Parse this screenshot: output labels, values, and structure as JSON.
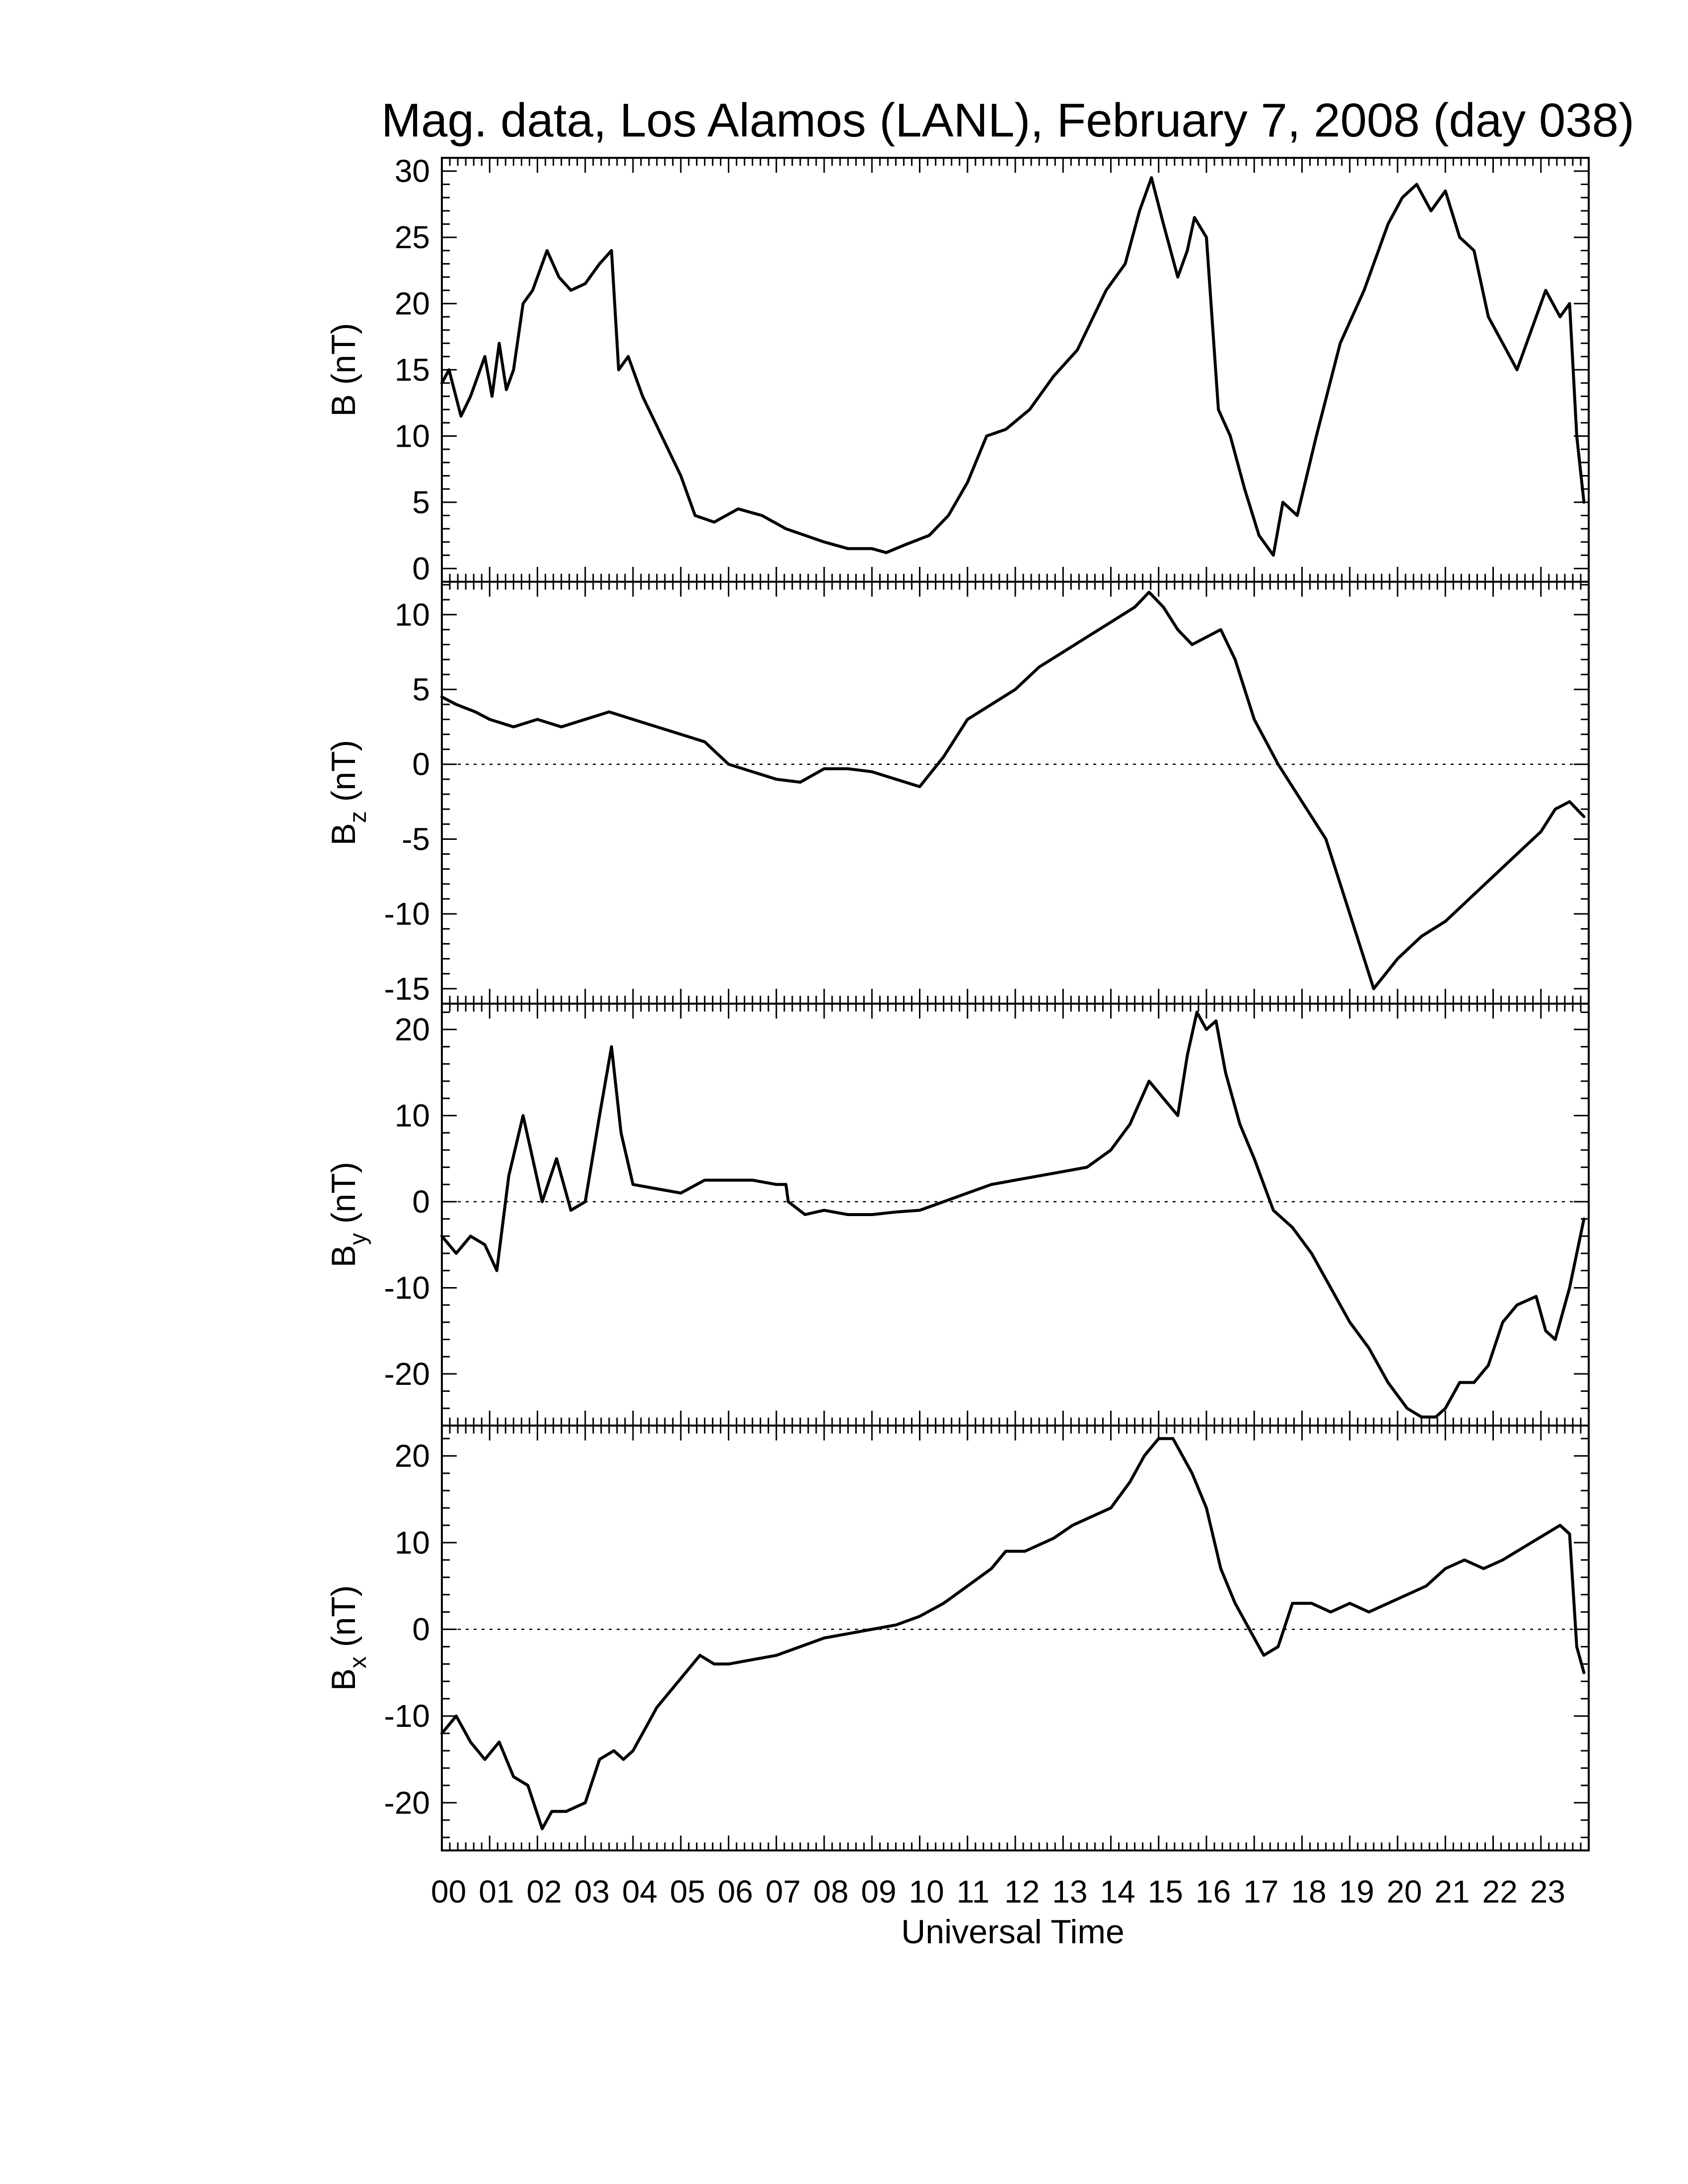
{
  "chart_data": {
    "title": "Mag. data, Los Alamos (LANL), February 7, 2008 (day 038)",
    "type": "line",
    "xlabel": "Universal Time",
    "x_ticks": [
      "00",
      "01",
      "02",
      "03",
      "04",
      "05",
      "06",
      "07",
      "08",
      "09",
      "10",
      "11",
      "12",
      "13",
      "14",
      "15",
      "16",
      "17",
      "18",
      "19",
      "20",
      "21",
      "22",
      "23"
    ],
    "xlim": [
      0,
      24
    ],
    "line_color": "#000000",
    "grid": false,
    "panels": [
      {
        "id": "B",
        "ylabel": "B",
        "ylabel_sub": "",
        "unit": "(nT)",
        "ylim": [
          -1,
          31
        ],
        "yticks": [
          0,
          5,
          10,
          15,
          20,
          25,
          30
        ],
        "zero_line": false,
        "x": [
          0,
          0.15,
          0.4,
          0.6,
          0.9,
          1.05,
          1.2,
          1.35,
          1.5,
          1.7,
          1.9,
          2.2,
          2.45,
          2.7,
          3.0,
          3.3,
          3.55,
          3.7,
          3.9,
          4.2,
          4.6,
          5.0,
          5.3,
          5.7,
          6.2,
          6.7,
          7.2,
          7.6,
          8.0,
          8.5,
          9.0,
          9.3,
          9.7,
          10.2,
          10.6,
          11.0,
          11.4,
          11.8,
          12.3,
          12.8,
          13.3,
          13.9,
          14.3,
          14.6,
          14.85,
          15.1,
          15.4,
          15.6,
          15.75,
          16.0,
          16.25,
          16.5,
          16.8,
          17.1,
          17.4,
          17.6,
          17.9,
          18.3,
          18.8,
          19.3,
          19.8,
          20.1,
          20.4,
          20.7,
          21.0,
          21.3,
          21.6,
          21.9,
          22.2,
          22.5,
          22.8,
          23.1,
          23.4,
          23.6,
          23.75,
          23.9
        ],
        "y": [
          14,
          15,
          11.5,
          13,
          16,
          13,
          17,
          13.5,
          15,
          20,
          21,
          24,
          22,
          21,
          21.5,
          23,
          24,
          15,
          16,
          13,
          10,
          7,
          4,
          3.5,
          4.5,
          4,
          3,
          2.5,
          2,
          1.5,
          1.5,
          1.2,
          1.8,
          2.5,
          4,
          6.5,
          10,
          10.5,
          12,
          14.5,
          16.5,
          21,
          23,
          27,
          29.5,
          26,
          22,
          24,
          26.5,
          25,
          12,
          10,
          6,
          2.5,
          1,
          5,
          4,
          10,
          17,
          21,
          26,
          28,
          29,
          27,
          28.5,
          25,
          24,
          19,
          17,
          15,
          18,
          21,
          19,
          20,
          10,
          5
        ]
      },
      {
        "id": "Bz",
        "ylabel": "B",
        "ylabel_sub": "z",
        "unit": "(nT)",
        "ylim": [
          -16,
          12.2
        ],
        "yticks": [
          -15,
          -10,
          -5,
          0,
          5,
          10
        ],
        "zero_line": true,
        "x": [
          0,
          0.3,
          0.7,
          1.0,
          1.5,
          2.0,
          2.5,
          3.0,
          3.5,
          4.0,
          4.5,
          5.0,
          5.5,
          6.0,
          6.5,
          7.0,
          7.5,
          8.0,
          8.5,
          9.0,
          9.5,
          10.0,
          10.5,
          11.0,
          11.5,
          12.0,
          12.5,
          13.0,
          13.5,
          14.0,
          14.5,
          14.8,
          15.1,
          15.4,
          15.7,
          16.0,
          16.3,
          16.6,
          17.0,
          17.5,
          18.0,
          18.5,
          19.0,
          19.5,
          20.0,
          20.5,
          21.0,
          21.5,
          22.0,
          22.5,
          23.0,
          23.3,
          23.6,
          23.9
        ],
        "y": [
          4.5,
          4,
          3.5,
          3,
          2.5,
          3,
          2.5,
          3,
          3.5,
          3,
          2.5,
          2,
          1.5,
          0,
          -0.5,
          -1,
          -1.2,
          -0.3,
          -0.3,
          -0.5,
          -1,
          -1.5,
          0.5,
          3,
          4,
          5,
          6.5,
          7.5,
          8.5,
          9.5,
          10.5,
          11.5,
          10.5,
          9,
          8,
          8.5,
          9,
          7,
          3,
          0,
          -2.5,
          -5,
          -10,
          -15,
          -13,
          -11.5,
          -10.5,
          -9,
          -7.5,
          -6,
          -4.5,
          -3,
          -2.5,
          -3.5
        ]
      },
      {
        "id": "By",
        "ylabel": "B",
        "ylabel_sub": "y",
        "unit": "(nT)",
        "ylim": [
          -26,
          23
        ],
        "yticks": [
          -20,
          -10,
          0,
          10,
          20
        ],
        "zero_line": true,
        "x": [
          0,
          0.3,
          0.6,
          0.9,
          1.15,
          1.4,
          1.7,
          1.9,
          2.1,
          2.4,
          2.7,
          3.0,
          3.3,
          3.55,
          3.75,
          4.0,
          4.5,
          5.0,
          5.5,
          6.0,
          6.5,
          7.0,
          7.2,
          7.25,
          7.6,
          8.0,
          8.5,
          9.0,
          9.5,
          10.0,
          10.5,
          11.0,
          11.5,
          12.0,
          12.5,
          13.0,
          13.5,
          14.0,
          14.4,
          14.8,
          15.1,
          15.4,
          15.6,
          15.8,
          16.0,
          16.2,
          16.4,
          16.7,
          17.0,
          17.4,
          17.8,
          18.2,
          18.6,
          19.0,
          19.4,
          19.8,
          20.2,
          20.5,
          20.8,
          21.0,
          21.3,
          21.6,
          21.9,
          22.2,
          22.5,
          22.9,
          23.1,
          23.3,
          23.6,
          23.9
        ],
        "y": [
          -4,
          -6,
          -4,
          -5,
          -8,
          3,
          10,
          5,
          0,
          5,
          -1,
          0,
          10,
          18,
          8,
          2,
          1.5,
          1,
          2.5,
          2.5,
          2.5,
          2,
          2,
          0,
          -1.5,
          -1,
          -1.5,
          -1.5,
          -1.2,
          -1,
          0,
          1,
          2,
          2.5,
          3,
          3.5,
          4,
          6,
          9,
          14,
          12,
          10,
          17,
          22,
          20,
          21,
          15,
          9,
          5,
          -1,
          -3,
          -6,
          -10,
          -14,
          -17,
          -21,
          -24,
          -25,
          -25,
          -24,
          -21,
          -21,
          -19,
          -14,
          -12,
          -11,
          -15,
          -16,
          -10,
          -2
        ]
      },
      {
        "id": "Bx",
        "ylabel": "B",
        "ylabel_sub": "x",
        "unit": "(nT)",
        "ylim": [
          -25.5,
          23.5
        ],
        "yticks": [
          -20,
          -10,
          0,
          10,
          20
        ],
        "zero_line": true,
        "x": [
          0,
          0.3,
          0.6,
          0.9,
          1.2,
          1.5,
          1.8,
          2.1,
          2.3,
          2.6,
          3.0,
          3.3,
          3.6,
          3.8,
          4.0,
          4.2,
          4.5,
          4.8,
          5.1,
          5.4,
          5.7,
          6.0,
          6.5,
          7.0,
          7.5,
          8.0,
          8.5,
          9.0,
          9.5,
          10.0,
          10.5,
          11.0,
          11.5,
          11.8,
          12.2,
          12.8,
          13.2,
          13.6,
          14.0,
          14.4,
          14.7,
          15.0,
          15.3,
          15.7,
          16.0,
          16.3,
          16.6,
          16.9,
          17.2,
          17.5,
          17.8,
          18.2,
          18.6,
          19.0,
          19.4,
          19.8,
          20.2,
          20.6,
          21.0,
          21.4,
          21.8,
          22.2,
          22.5,
          22.8,
          23.1,
          23.4,
          23.6,
          23.75,
          23.9
        ],
        "y": [
          -12,
          -10,
          -13,
          -15,
          -13,
          -17,
          -18,
          -23,
          -21,
          -21,
          -20,
          -15,
          -14,
          -15,
          -14,
          -12,
          -9,
          -7,
          -5,
          -3,
          -4,
          -4,
          -3.5,
          -3,
          -2,
          -1,
          -0.5,
          0,
          0.5,
          1.5,
          3,
          5,
          7,
          9,
          9,
          10.5,
          12,
          13,
          14,
          17,
          20,
          22,
          22,
          18,
          14,
          7,
          3,
          0,
          -3,
          -2,
          3,
          3,
          2,
          3,
          2,
          3,
          4,
          5,
          7,
          8,
          7,
          8,
          9,
          10,
          11,
          12,
          11,
          -2,
          -5
        ]
      }
    ]
  }
}
